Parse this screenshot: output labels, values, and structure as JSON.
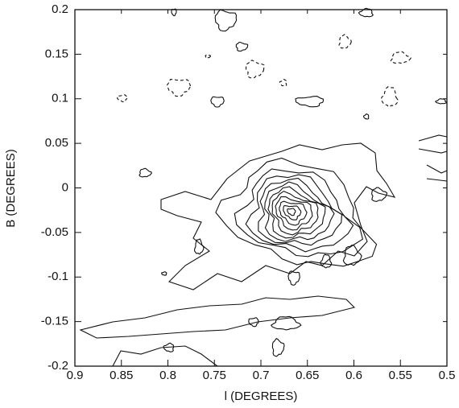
{
  "chart_data": {
    "type": "contour",
    "xlabel": "l (DEGREES)",
    "ylabel": "B (DEGREES)",
    "xlim": [
      0.9,
      0.5
    ],
    "xticks": [
      0.9,
      0.85,
      0.8,
      0.75,
      0.7,
      0.65,
      0.6,
      0.55,
      0.5
    ],
    "ylim": [
      -0.2,
      0.2
    ],
    "yticks": [
      0.2,
      0.15,
      0.1,
      0.05,
      0,
      -0.05,
      -0.1,
      -0.15,
      -0.2
    ],
    "color": "#111111"
  }
}
